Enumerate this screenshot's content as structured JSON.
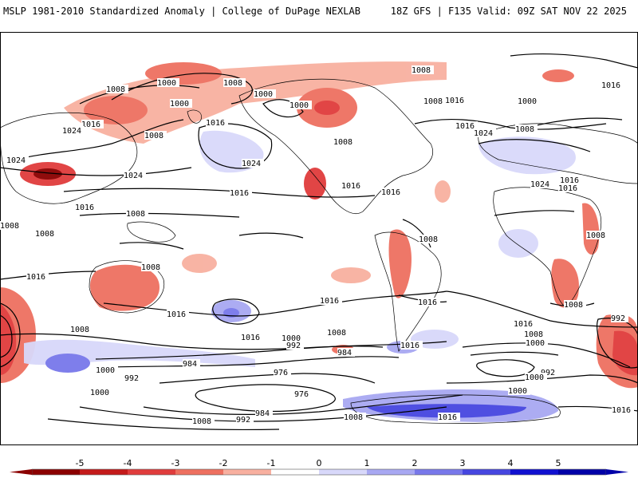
{
  "header": {
    "title": "MSLP 1981-2010 Standardized Anomaly | College of DuPage NEXLAB",
    "run_info": "18Z GFS | F135 Valid: 09Z SAT NOV 22 2025"
  },
  "colorbar": {
    "ticks": [
      "-5",
      "-4",
      "-3",
      "-2",
      "-1",
      "0",
      "1",
      "2",
      "3",
      "4",
      "5"
    ],
    "colors": [
      "#8b0000",
      "#c41a1a",
      "#e03c3c",
      "#ee7060",
      "#f8b0a0",
      "#ffffff",
      "#d8d8fa",
      "#a8a8f2",
      "#7878ea",
      "#4646e0",
      "#1010d0",
      "#0000a8"
    ]
  },
  "isobars": [
    {
      "id": "np-1000",
      "text": "1000"
    },
    {
      "id": "np-1008-a",
      "text": "1008"
    },
    {
      "id": "np-1008-b",
      "text": "1008"
    },
    {
      "id": "np-1000-b",
      "text": "1000"
    },
    {
      "id": "nw-1016",
      "text": "1016"
    },
    {
      "id": "nw-1024-a",
      "text": "1024"
    },
    {
      "id": "nw-1008",
      "text": "1008"
    },
    {
      "id": "nw-1024-b",
      "text": "1024"
    },
    {
      "id": "w-1024",
      "text": "1024"
    },
    {
      "id": "ak-1000",
      "text": "1000"
    },
    {
      "id": "ak-1016",
      "text": "1016"
    },
    {
      "id": "cp-1024",
      "text": "1024"
    },
    {
      "id": "cp-1016",
      "text": "1016"
    },
    {
      "id": "ca-1000",
      "text": "1000"
    },
    {
      "id": "ca-1008",
      "text": "1008"
    },
    {
      "id": "na-1008",
      "text": "1008"
    },
    {
      "id": "na-1016-a",
      "text": "1016"
    },
    {
      "id": "na-1016-b",
      "text": "1016"
    },
    {
      "id": "ea-1008",
      "text": "1008"
    },
    {
      "id": "ea-1016",
      "text": "1016"
    },
    {
      "id": "ea-1000",
      "text": "1000"
    },
    {
      "id": "ea-1016-b",
      "text": "1016"
    },
    {
      "id": "eu-1008",
      "text": "1008"
    },
    {
      "id": "eu-1024",
      "text": "1024"
    },
    {
      "id": "eu-1024-b",
      "text": "1024"
    },
    {
      "id": "eu-1016",
      "text": "1016"
    },
    {
      "id": "af-1016",
      "text": "1016"
    },
    {
      "id": "af-1008",
      "text": "1008"
    },
    {
      "id": "wp-1016",
      "text": "1016"
    },
    {
      "id": "wp-1008-a",
      "text": "1008"
    },
    {
      "id": "wp-1008-b",
      "text": "1008"
    },
    {
      "id": "wp-1008-c",
      "text": "1008"
    },
    {
      "id": "ep-1016",
      "text": "1016"
    },
    {
      "id": "sa-1008",
      "text": "1008"
    },
    {
      "id": "sa-1016",
      "text": "1016"
    },
    {
      "id": "sa-1016-b",
      "text": "1016"
    },
    {
      "id": "sp-1016-a",
      "text": "1016"
    },
    {
      "id": "sp-1016-b",
      "text": "1016"
    },
    {
      "id": "sp-1016-c",
      "text": "1016"
    },
    {
      "id": "sw-1016",
      "text": "1016"
    },
    {
      "id": "sw-1008",
      "text": "1008"
    },
    {
      "id": "s-1008-a",
      "text": "1008"
    },
    {
      "id": "s-1000-a",
      "text": "1000"
    },
    {
      "id": "s-992-a",
      "text": "992"
    },
    {
      "id": "s-984-a",
      "text": "984"
    },
    {
      "id": "s-976-a",
      "text": "976"
    },
    {
      "id": "s-1000-b",
      "text": "1000"
    },
    {
      "id": "s-992-b",
      "text": "992"
    },
    {
      "id": "s-984-b",
      "text": "984"
    },
    {
      "id": "s-976-b",
      "text": "976"
    },
    {
      "id": "s-1000-c",
      "text": "1000"
    },
    {
      "id": "s-992-c",
      "text": "992"
    },
    {
      "id": "s-984-c",
      "text": "984"
    },
    {
      "id": "s-1008-b",
      "text": "1008"
    },
    {
      "id": "s-1008-c",
      "text": "1008"
    },
    {
      "id": "s-1016-d",
      "text": "1016"
    },
    {
      "id": "s-1008-d",
      "text": "1008"
    },
    {
      "id": "s-1000-d",
      "text": "1000"
    },
    {
      "id": "s-992-d",
      "text": "992"
    },
    {
      "id": "s-1000-e",
      "text": "1000"
    },
    {
      "id": "s-1016-e",
      "text": "1016"
    },
    {
      "id": "s-1016-f",
      "text": "1016"
    },
    {
      "id": "s-1008-e",
      "text": "1008"
    },
    {
      "id": "s-1008-f",
      "text": "1008"
    },
    {
      "id": "s-992-e",
      "text": "992"
    },
    {
      "id": "s-1000-f",
      "text": "1000"
    }
  ]
}
